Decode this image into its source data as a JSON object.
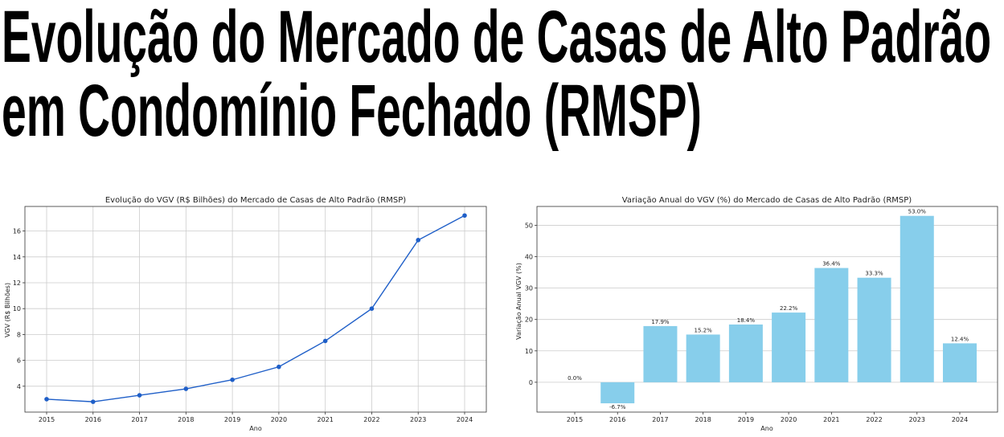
{
  "headline": {
    "line1": "Evolução do Mercado de Casas de Alto Padrão",
    "line2": "em Condomínio Fechado (RMSP)"
  },
  "colors": {
    "line": "#1f5fc8",
    "bar": "#87ceeb",
    "grid": "#cccccc"
  },
  "chart_data": [
    {
      "type": "line",
      "title": "Evolução do VGV (R$ Bilhões) do Mercado de Casas de Alto Padrão (RMSP)",
      "xlabel": "Ano",
      "ylabel": "VGV (R$ Bilhões)",
      "x": [
        "2015",
        "2016",
        "2017",
        "2018",
        "2019",
        "2020",
        "2021",
        "2022",
        "2023",
        "2024"
      ],
      "series": [
        {
          "values": [
            3.0,
            2.8,
            3.3,
            3.8,
            4.5,
            5.5,
            7.5,
            10.0,
            15.3,
            17.2
          ]
        }
      ],
      "yticks": [
        4,
        6,
        8,
        10,
        12,
        14,
        16
      ],
      "ylim": [
        2.0,
        17.9
      ],
      "grid": true
    },
    {
      "type": "bar",
      "title": "Variação Anual do VGV (%) do Mercado de Casas de Alto Padrão (RMSP)",
      "xlabel": "Ano",
      "ylabel": "Variação Anual VGV (%)",
      "categories": [
        "2015",
        "2016",
        "2017",
        "2018",
        "2019",
        "2020",
        "2021",
        "2022",
        "2023",
        "2024"
      ],
      "values": [
        0.0,
        -6.7,
        17.9,
        15.2,
        18.4,
        22.2,
        36.4,
        33.3,
        53.0,
        12.4
      ],
      "data_labels": [
        "0.0%",
        "-6.7%",
        "17.9%",
        "15.2%",
        "18.4%",
        "22.2%",
        "36.4%",
        "33.3%",
        "53.0%",
        "12.4%"
      ],
      "yticks": [
        0,
        10,
        20,
        30,
        40,
        50
      ],
      "ylim": [
        -9.5,
        56
      ],
      "grid": true
    }
  ]
}
